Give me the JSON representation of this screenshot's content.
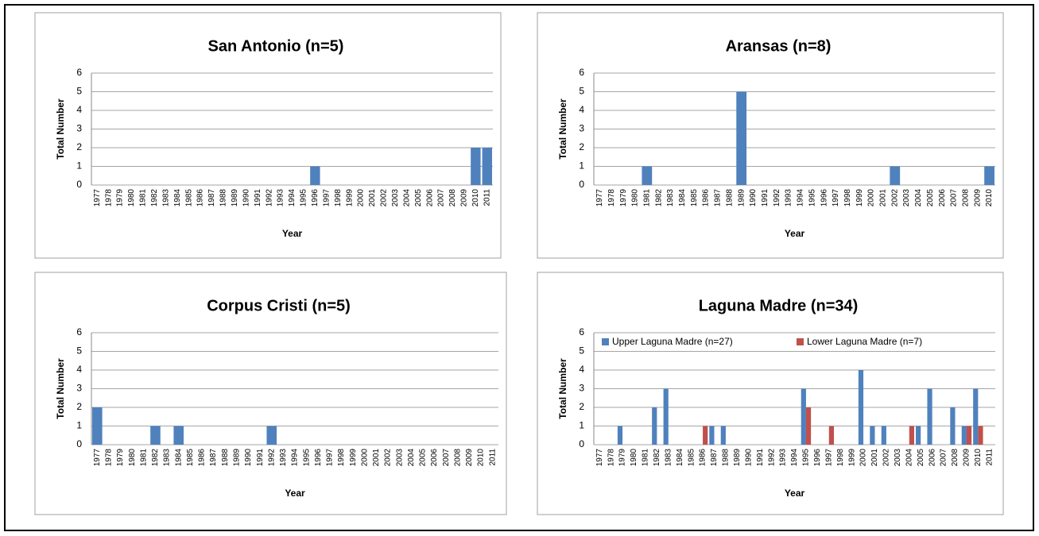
{
  "chart_data": [
    {
      "type": "bar",
      "title": "San Antonio (n=5)",
      "y_label": "Total Number",
      "x_label": "Year",
      "categories": [
        "1977",
        "1978",
        "1979",
        "1980",
        "1981",
        "1982",
        "1983",
        "1984",
        "1985",
        "1986",
        "1987",
        "1988",
        "1989",
        "1990",
        "1991",
        "1992",
        "1993",
        "1994",
        "1995",
        "1996",
        "1997",
        "1998",
        "1999",
        "2000",
        "2001",
        "2002",
        "2003",
        "2004",
        "2005",
        "2006",
        "2007",
        "2008",
        "2009",
        "2010",
        "2011"
      ],
      "series": [
        {
          "name": null,
          "color": "#4f81bd",
          "values": [
            0,
            0,
            0,
            0,
            0,
            0,
            0,
            0,
            0,
            0,
            0,
            0,
            0,
            0,
            0,
            0,
            0,
            0,
            0,
            1,
            0,
            0,
            0,
            0,
            0,
            0,
            0,
            0,
            0,
            0,
            0,
            0,
            0,
            2,
            2
          ]
        }
      ],
      "ylim": [
        0,
        6
      ],
      "yticks": [
        0,
        1,
        2,
        3,
        4,
        5,
        6
      ],
      "grid": true
    },
    {
      "type": "bar",
      "title": "Aransas (n=8)",
      "y_label": "Total Number",
      "x_label": "Year",
      "categories": [
        "1977",
        "1978",
        "1979",
        "1980",
        "1981",
        "1982",
        "1983",
        "1984",
        "1985",
        "1986",
        "1987",
        "1988",
        "1989",
        "1990",
        "1991",
        "1992",
        "1993",
        "1994",
        "1995",
        "1996",
        "1997",
        "1998",
        "1999",
        "2000",
        "2001",
        "2002",
        "2003",
        "2004",
        "2005",
        "2006",
        "2007",
        "2008",
        "2009",
        "2010"
      ],
      "series": [
        {
          "name": null,
          "color": "#4f81bd",
          "values": [
            0,
            0,
            0,
            0,
            1,
            0,
            0,
            0,
            0,
            0,
            0,
            0,
            5,
            0,
            0,
            0,
            0,
            0,
            0,
            0,
            0,
            0,
            0,
            0,
            0,
            1,
            0,
            0,
            0,
            0,
            0,
            0,
            0,
            1
          ]
        }
      ],
      "ylim": [
        0,
        6
      ],
      "yticks": [
        0,
        1,
        2,
        3,
        4,
        5,
        6
      ],
      "grid": true
    },
    {
      "type": "bar",
      "title": "Corpus Cristi (n=5)",
      "y_label": "Total Number",
      "x_label": "Year",
      "categories": [
        "1977",
        "1978",
        "1979",
        "1980",
        "1981",
        "1982",
        "1983",
        "1984",
        "1985",
        "1986",
        "1987",
        "1988",
        "1989",
        "1990",
        "1991",
        "1992",
        "1993",
        "1994",
        "1995",
        "1996",
        "1997",
        "1998",
        "1999",
        "2000",
        "2001",
        "2002",
        "2003",
        "2004",
        "2005",
        "2006",
        "2007",
        "2008",
        "2009",
        "2010",
        "2011"
      ],
      "series": [
        {
          "name": null,
          "color": "#4f81bd",
          "values": [
            2,
            0,
            0,
            0,
            0,
            1,
            0,
            1,
            0,
            0,
            0,
            0,
            0,
            0,
            0,
            1,
            0,
            0,
            0,
            0,
            0,
            0,
            0,
            0,
            0,
            0,
            0,
            0,
            0,
            0,
            0,
            0,
            0,
            0,
            0
          ]
        }
      ],
      "ylim": [
        0,
        6
      ],
      "yticks": [
        0,
        1,
        2,
        3,
        4,
        5,
        6
      ],
      "grid": true
    },
    {
      "type": "bar",
      "title": "Laguna Madre (n=34)",
      "y_label": "Total Number",
      "x_label": "Year",
      "categories": [
        "1977",
        "1978",
        "1979",
        "1980",
        "1981",
        "1982",
        "1983",
        "1984",
        "1985",
        "1986",
        "1987",
        "1988",
        "1989",
        "1990",
        "1991",
        "1992",
        "1993",
        "1994",
        "1995",
        "1996",
        "1997",
        "1998",
        "1999",
        "2000",
        "2001",
        "2002",
        "2003",
        "2004",
        "2005",
        "2006",
        "2007",
        "2008",
        "2009",
        "2010",
        "2011"
      ],
      "series": [
        {
          "name": "Upper Laguna Madre (n=27)",
          "color": "#4f81bd",
          "values": [
            0,
            0,
            1,
            0,
            0,
            2,
            3,
            0,
            0,
            0,
            1,
            1,
            0,
            0,
            0,
            0,
            0,
            0,
            3,
            0,
            0,
            0,
            0,
            4,
            1,
            1,
            0,
            0,
            1,
            3,
            0,
            2,
            1,
            3,
            0
          ]
        },
        {
          "name": "Lower Laguna Madre (n=7)",
          "color": "#c0504d",
          "values": [
            0,
            0,
            0,
            0,
            0,
            0,
            0,
            0,
            0,
            1,
            0,
            0,
            0,
            0,
            0,
            0,
            0,
            0,
            2,
            0,
            1,
            0,
            0,
            0,
            0,
            0,
            0,
            1,
            0,
            0,
            0,
            0,
            1,
            1,
            0
          ]
        }
      ],
      "ylim": [
        0,
        6
      ],
      "yticks": [
        0,
        1,
        2,
        3,
        4,
        5,
        6
      ],
      "grid": true,
      "legend": "top"
    }
  ]
}
